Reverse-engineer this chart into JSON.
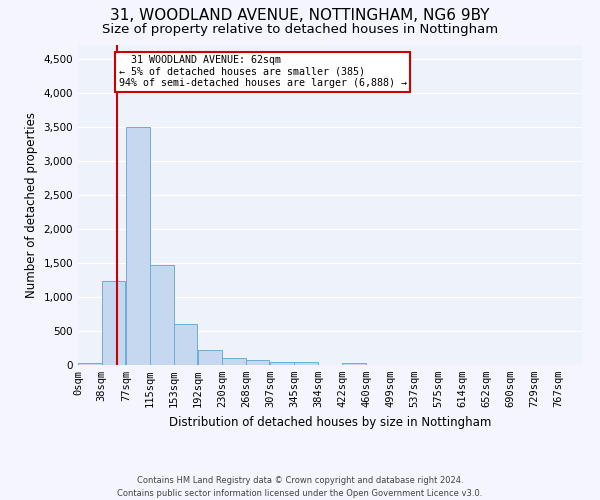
{
  "title_line1": "31, WOODLAND AVENUE, NOTTINGHAM, NG6 9BY",
  "title_line2": "Size of property relative to detached houses in Nottingham",
  "xlabel": "Distribution of detached houses by size in Nottingham",
  "ylabel": "Number of detached properties",
  "footnote": "Contains HM Land Registry data © Crown copyright and database right 2024.\nContains public sector information licensed under the Open Government Licence v3.0.",
  "bin_labels": [
    "0sqm",
    "38sqm",
    "77sqm",
    "115sqm",
    "153sqm",
    "192sqm",
    "230sqm",
    "268sqm",
    "307sqm",
    "345sqm",
    "384sqm",
    "422sqm",
    "460sqm",
    "499sqm",
    "537sqm",
    "575sqm",
    "614sqm",
    "652sqm",
    "690sqm",
    "729sqm",
    "767sqm"
  ],
  "bar_values": [
    30,
    1230,
    3500,
    1470,
    600,
    215,
    110,
    75,
    50,
    40,
    0,
    35,
    0,
    0,
    0,
    0,
    0,
    0,
    0,
    0
  ],
  "bar_color": "#c5d8f0",
  "bar_edge_color": "#6aaed6",
  "property_line_x": 62,
  "annotation_text": "  31 WOODLAND AVENUE: 62sqm\n← 5% of detached houses are smaller (385)\n94% of semi-detached houses are larger (6,888) →",
  "annotation_box_color": "#ffffff",
  "annotation_box_edge": "#cc0000",
  "red_line_color": "#cc0000",
  "ylim": [
    0,
    4700
  ],
  "background_color": "#eef2fb",
  "grid_color": "#ffffff",
  "title_fontsize": 11,
  "subtitle_fontsize": 9.5,
  "axis_label_fontsize": 8.5,
  "tick_fontsize": 7.5,
  "footnote_fontsize": 6.0
}
